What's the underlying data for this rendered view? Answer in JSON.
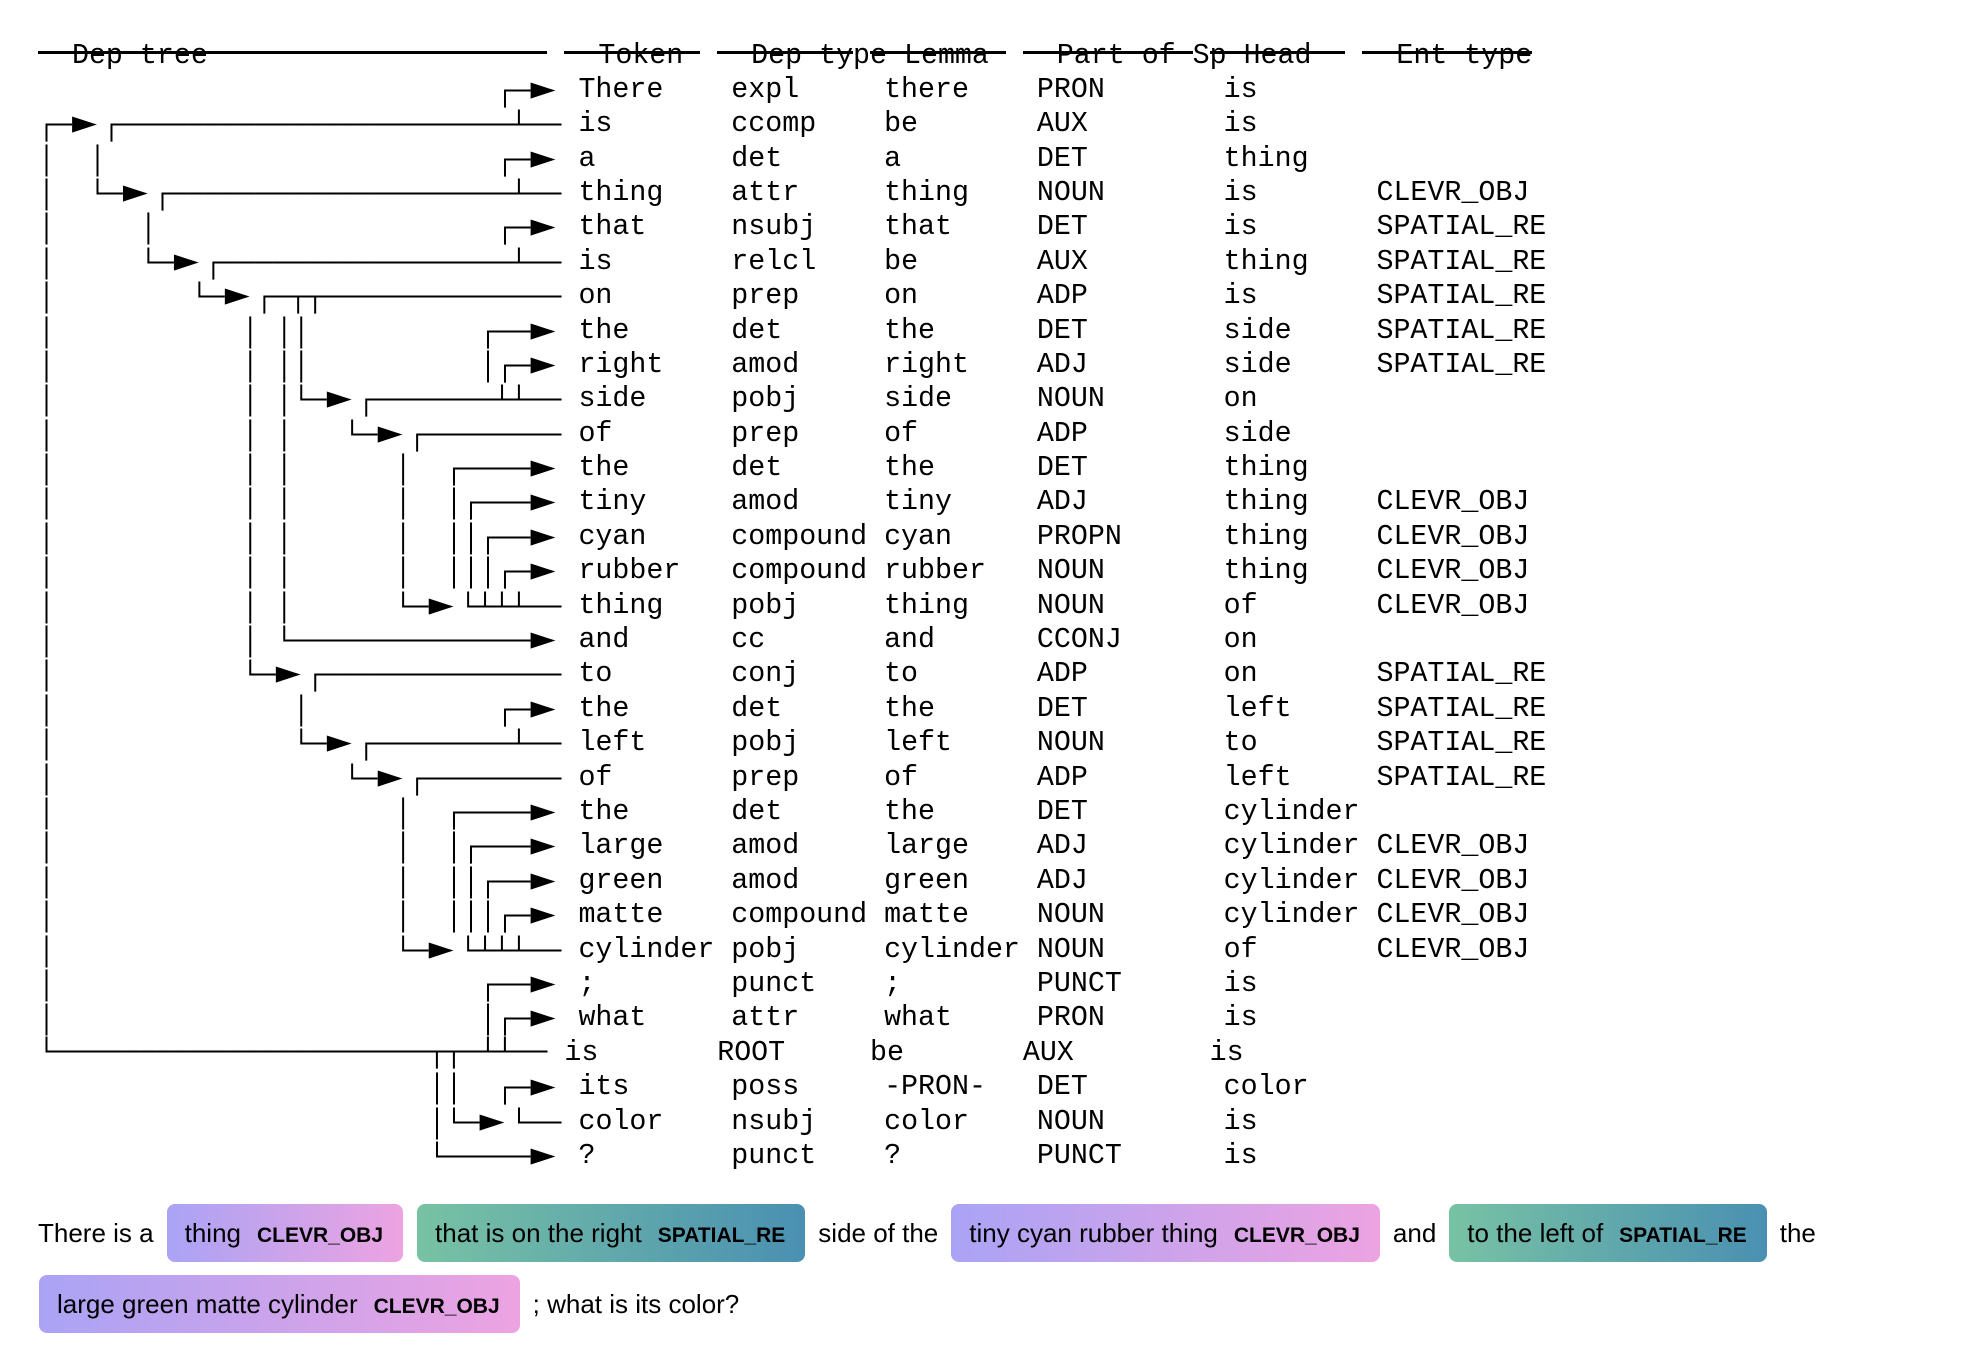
{
  "table": {
    "headers": [
      "Dep tree",
      "Token",
      "Dep type",
      "Lemma",
      "Part of Sp",
      "Head",
      "Ent type"
    ],
    "rows": [
      {
        "tree": "                           ┌─►",
        "token": "There",
        "dep": "expl",
        "lemma": "there",
        "pos": "PRON",
        "head": "is",
        "ent": ""
      },
      {
        "tree": "┌─►┌───────────────────────┴──",
        "token": "is",
        "dep": "ccomp",
        "lemma": "be",
        "pos": "AUX",
        "head": "is",
        "ent": ""
      },
      {
        "tree": "│  │                       ┌─►",
        "token": "a",
        "dep": "det",
        "lemma": "a",
        "pos": "DET",
        "head": "thing",
        "ent": ""
      },
      {
        "tree": "│  └─►┌────────────────────┴──",
        "token": "thing",
        "dep": "attr",
        "lemma": "thing",
        "pos": "NOUN",
        "head": "is",
        "ent": "CLEVR_OBJ"
      },
      {
        "tree": "│     │                    ┌─►",
        "token": "that",
        "dep": "nsubj",
        "lemma": "that",
        "pos": "DET",
        "head": "is",
        "ent": "SPATIAL_RE"
      },
      {
        "tree": "│     └─►┌─────────────────┴──",
        "token": "is",
        "dep": "relcl",
        "lemma": "be",
        "pos": "AUX",
        "head": "thing",
        "ent": "SPATIAL_RE"
      },
      {
        "tree": "│        └─►┌─┬┬──────────────",
        "token": "on",
        "dep": "prep",
        "lemma": "on",
        "pos": "ADP",
        "head": "is",
        "ent": "SPATIAL_RE"
      },
      {
        "tree": "│           │ ││          ┌──►",
        "token": "the",
        "dep": "det",
        "lemma": "the",
        "pos": "DET",
        "head": "side",
        "ent": "SPATIAL_RE"
      },
      {
        "tree": "│           │ ││          │┌─►",
        "token": "right",
        "dep": "amod",
        "lemma": "right",
        "pos": "ADJ",
        "head": "side",
        "ent": "SPATIAL_RE"
      },
      {
        "tree": "│           │ │└─►┌───────┴┴──",
        "token": "side",
        "dep": "pobj",
        "lemma": "side",
        "pos": "NOUN",
        "head": "on",
        "ent": ""
      },
      {
        "tree": "│           │ │   └─►┌────────",
        "token": "of",
        "dep": "prep",
        "lemma": "of",
        "pos": "ADP",
        "head": "side",
        "ent": ""
      },
      {
        "tree": "│           │ │      │  ┌────►",
        "token": "the",
        "dep": "det",
        "lemma": "the",
        "pos": "DET",
        "head": "thing",
        "ent": ""
      },
      {
        "tree": "│           │ │      │  │┌───►",
        "token": "tiny",
        "dep": "amod",
        "lemma": "tiny",
        "pos": "ADJ",
        "head": "thing",
        "ent": "CLEVR_OBJ"
      },
      {
        "tree": "│           │ │      │  ││┌──►",
        "token": "cyan",
        "dep": "compound",
        "lemma": "cyan",
        "pos": "PROPN",
        "head": "thing",
        "ent": "CLEVR_OBJ"
      },
      {
        "tree": "│           │ │      │  │││┌─►",
        "token": "rubber",
        "dep": "compound",
        "lemma": "rubber",
        "pos": "NOUN",
        "head": "thing",
        "ent": "CLEVR_OBJ"
      },
      {
        "tree": "│           │ │      └─►└┴┴┴──",
        "token": "thing",
        "dep": "pobj",
        "lemma": "thing",
        "pos": "NOUN",
        "head": "of",
        "ent": "CLEVR_OBJ"
      },
      {
        "tree": "│           │ └──────────────►",
        "token": "and",
        "dep": "cc",
        "lemma": "and",
        "pos": "CCONJ",
        "head": "on",
        "ent": ""
      },
      {
        "tree": "│           └─►┌──────────────",
        "token": "to",
        "dep": "conj",
        "lemma": "to",
        "pos": "ADP",
        "head": "on",
        "ent": "SPATIAL_RE"
      },
      {
        "tree": "│              │           ┌─►",
        "token": "the",
        "dep": "det",
        "lemma": "the",
        "pos": "DET",
        "head": "left",
        "ent": "SPATIAL_RE"
      },
      {
        "tree": "│              └─►┌────────┴──",
        "token": "left",
        "dep": "pobj",
        "lemma": "left",
        "pos": "NOUN",
        "head": "to",
        "ent": "SPATIAL_RE"
      },
      {
        "tree": "│                 └─►┌────────",
        "token": "of",
        "dep": "prep",
        "lemma": "of",
        "pos": "ADP",
        "head": "left",
        "ent": "SPATIAL_RE"
      },
      {
        "tree": "│                    │  ┌────►",
        "token": "the",
        "dep": "det",
        "lemma": "the",
        "pos": "DET",
        "head": "cylinder",
        "ent": ""
      },
      {
        "tree": "│                    │  │┌───►",
        "token": "large",
        "dep": "amod",
        "lemma": "large",
        "pos": "ADJ",
        "head": "cylinder",
        "ent": "CLEVR_OBJ"
      },
      {
        "tree": "│                    │  ││┌──►",
        "token": "green",
        "dep": "amod",
        "lemma": "green",
        "pos": "ADJ",
        "head": "cylinder",
        "ent": "CLEVR_OBJ"
      },
      {
        "tree": "│                    │  │││┌─►",
        "token": "matte",
        "dep": "compound",
        "lemma": "matte",
        "pos": "NOUN",
        "head": "cylinder",
        "ent": "CLEVR_OBJ"
      },
      {
        "tree": "│                    └─►└┴┴┴──",
        "token": "cylinder",
        "dep": "pobj",
        "lemma": "cylinder",
        "pos": "NOUN",
        "head": "of",
        "ent": "CLEVR_OBJ"
      },
      {
        "tree": "│                         ┌──►",
        "token": ";",
        "dep": "punct",
        "lemma": ";",
        "pos": "PUNCT",
        "head": "is",
        "ent": ""
      },
      {
        "tree": "│                         │┌─►",
        "token": "what",
        "dep": "attr",
        "lemma": "what",
        "pos": "PRON",
        "head": "is",
        "ent": ""
      },
      {
        "tree": "└──────────────────────┬┬─┴┴──",
        "token": "is",
        "dep": "ROOT",
        "lemma": "be",
        "pos": "AUX",
        "head": "is",
        "ent": ""
      },
      {
        "tree": "                       ││  ┌─►",
        "token": "its",
        "dep": "poss",
        "lemma": "-PRON-",
        "pos": "DET",
        "head": "color",
        "ent": ""
      },
      {
        "tree": "                       │└─►└──",
        "token": "color",
        "dep": "nsubj",
        "lemma": "color",
        "pos": "NOUN",
        "head": "is",
        "ent": ""
      },
      {
        "tree": "                       └─────►",
        "token": "?",
        "dep": "punct",
        "lemma": "?",
        "pos": "PUNCT",
        "head": "is",
        "ent": ""
      }
    ]
  },
  "entities": {
    "colors": {
      "CLEVR_OBJ": [
        "#aaa3f5",
        "#eda3e1"
      ],
      "SPATIAL_RE": [
        "#78c2a4",
        "#4a90b2"
      ]
    },
    "lines": [
      [
        {
          "text": "There is a"
        },
        {
          "text": "thing",
          "label": "CLEVR_OBJ"
        },
        {
          "text": "that is on the right",
          "label": "SPATIAL_RE"
        },
        {
          "text": "side of the"
        },
        {
          "text": "tiny cyan rubber thing",
          "label": "CLEVR_OBJ"
        },
        {
          "text": "and"
        },
        {
          "text": "to the left of",
          "label": "SPATIAL_RE"
        },
        {
          "text": "the"
        }
      ],
      [
        {
          "text": "large green matte cylinder",
          "label": "CLEVR_OBJ"
        },
        {
          "text": "; what is its color?"
        }
      ]
    ]
  }
}
